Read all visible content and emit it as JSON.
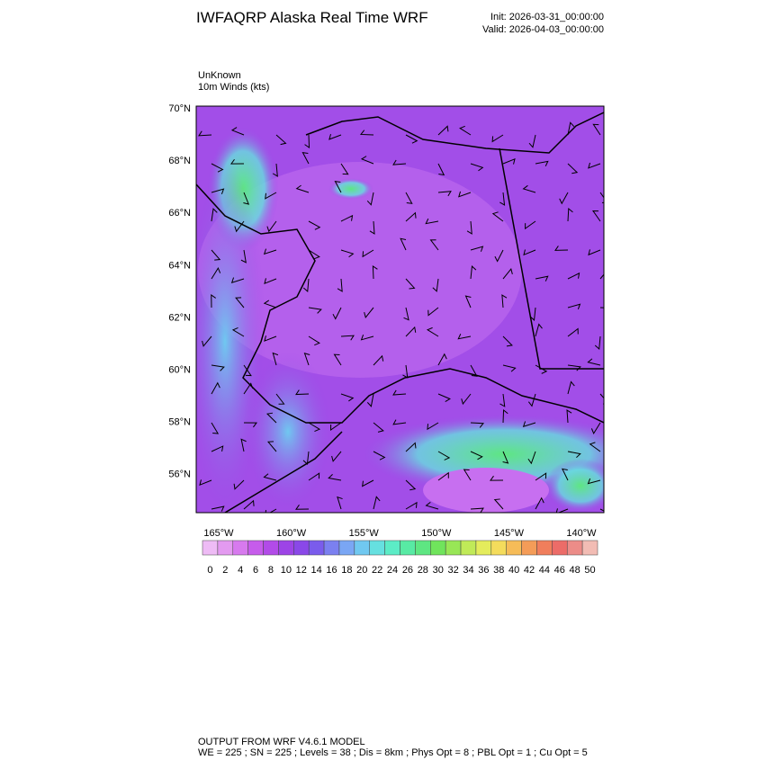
{
  "header": {
    "title": "IWFAQRP Alaska Real Time WRF",
    "init": "Init: 2026-03-31_00:00:00",
    "valid": "Valid: 2026-04-03_00:00:00"
  },
  "field": {
    "name": "UnKnown",
    "description": "10m Winds   (kts)"
  },
  "map": {
    "lat_labels": [
      "70°N",
      "68°N",
      "66°N",
      "64°N",
      "62°N",
      "60°N",
      "58°N",
      "56°N"
    ],
    "lon_labels": [
      "165°W",
      "160°W",
      "155°W",
      "150°W",
      "145°W",
      "140°W"
    ]
  },
  "colorbar": {
    "levels": [
      0,
      2,
      4,
      6,
      8,
      10,
      12,
      14,
      16,
      18,
      20,
      22,
      24,
      26,
      28,
      30,
      32,
      34,
      36,
      38,
      40,
      42,
      44,
      46,
      48,
      50
    ],
    "colors": [
      "#eebbf5",
      "#e39af0",
      "#d77aee",
      "#c65ceb",
      "#b24be8",
      "#9d44e6",
      "#8a48e8",
      "#7a5cec",
      "#7b80f0",
      "#7aa6f4",
      "#70c8f0",
      "#66e0e0",
      "#5cecc6",
      "#58eaa4",
      "#5ee682",
      "#70e45c",
      "#98e656",
      "#c0ea58",
      "#e4ec5c",
      "#f4dc5c",
      "#f6bc58",
      "#f49c58",
      "#f07e5c",
      "#ec6c68",
      "#ec8c88",
      "#f2bcb4"
    ]
  },
  "footer": {
    "model": "OUTPUT FROM WRF V4.6.1 MODEL",
    "settings": "WE = 225 ; SN = 225 ; Levels = 38 ; Dis = 8km ; Phys Opt = 8 ; PBL Opt = 1 ; Cu Opt = 5"
  }
}
